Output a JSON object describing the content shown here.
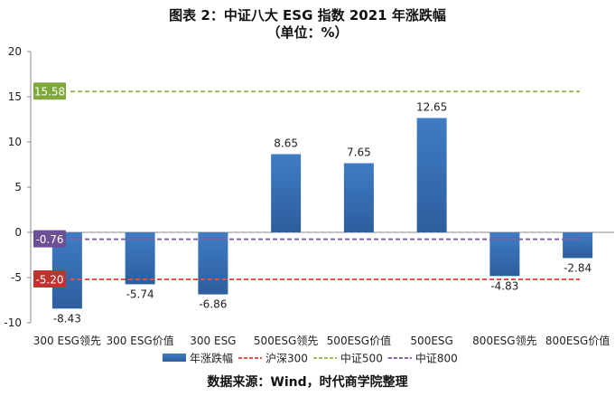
{
  "chart_data": {
    "type": "bar",
    "title": "图表 2：中证八大 ESG 指数 2021 年涨跌幅",
    "subtitle": "（单位：%）",
    "source": "数据来源：Wind，时代商学院整理",
    "categories": [
      "300 ESG领先",
      "300 ESG价值",
      "300 ESG",
      "500ESG领先",
      "500ESG价值",
      "500ESG",
      "800ESG领先",
      "800ESG价值"
    ],
    "series": [
      {
        "name": "年涨跌幅",
        "type": "bar",
        "color": "#3a70b8",
        "values": [
          -8.43,
          -5.74,
          -6.86,
          8.65,
          7.65,
          12.65,
          -4.83,
          -2.84
        ]
      },
      {
        "name": "沪深300",
        "type": "reference-line",
        "color": "#d9534f",
        "value": -5.2,
        "label": "-5.20",
        "label_color": "#c0332e"
      },
      {
        "name": "中证500",
        "type": "reference-line",
        "color": "#9bbb59",
        "value": 15.58,
        "label": "15.58",
        "label_color": "#7ea83a"
      },
      {
        "name": "中证800",
        "type": "reference-line",
        "color": "#8064a2",
        "value": -0.76,
        "label": "-0.76",
        "label_color": "#6d4f96"
      }
    ],
    "data_labels": [
      "-8.43",
      "-5.74",
      "-6.86",
      "8.65",
      "7.65",
      "12.65",
      "-4.83",
      "-2.84"
    ],
    "yticks": [
      "20",
      "15",
      "10",
      "5",
      "0",
      "-5",
      "-10"
    ],
    "ylim": [
      -10,
      20
    ],
    "grid": false,
    "legend_position": "bottom"
  }
}
